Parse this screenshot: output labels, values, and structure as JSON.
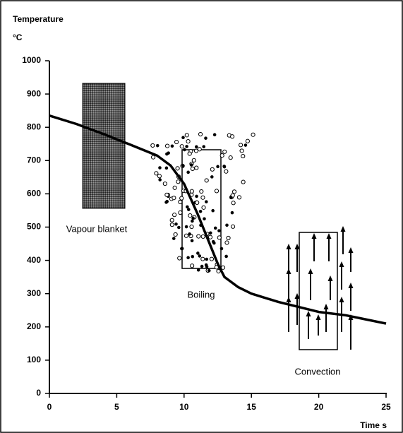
{
  "chart_data": {
    "type": "line",
    "y_label": "Temperature",
    "y_unit": "°C",
    "x_label": "Time s",
    "x": [
      0,
      2,
      4,
      6,
      8,
      9,
      10,
      11,
      12,
      12.5,
      13,
      14,
      15,
      17,
      20,
      22,
      25
    ],
    "series": [
      {
        "color": "#000000",
        "values": [
          835,
          810,
          780,
          748,
          715,
          685,
          630,
          540,
          440,
          390,
          350,
          320,
          300,
          275,
          245,
          235,
          210
        ]
      }
    ],
    "xlim": [
      0,
      25
    ],
    "xticks": [
      0,
      5,
      10,
      15,
      20,
      25
    ],
    "ylim": [
      0,
      1000
    ],
    "yticks": [
      0,
      100,
      200,
      300,
      400,
      500,
      600,
      700,
      800,
      900,
      1000
    ],
    "grid": false,
    "annotations": [
      "Vapour blanket",
      "Boiling",
      "Convection"
    ]
  }
}
